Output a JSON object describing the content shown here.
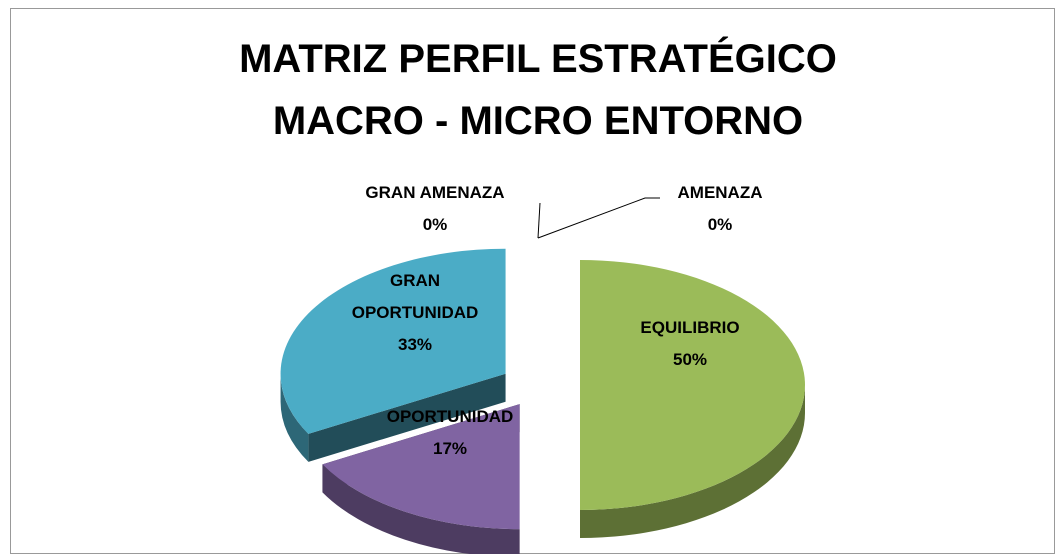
{
  "chart_data": {
    "type": "pie",
    "title": "MATRIZ PERFIL ESTRATÉGICO MACRO - MICRO ENTORNO",
    "categories": [
      "GRAN AMENAZA",
      "AMENAZA",
      "EQUILIBRIO",
      "OPORTUNIDAD",
      "GRAN OPORTUNIDAD"
    ],
    "values": [
      0,
      0,
      50,
      17,
      33
    ],
    "value_labels": [
      "0%",
      "0%",
      "50%",
      "17%",
      "33%"
    ],
    "colors": [
      "#C0504D",
      "#4F81BD",
      "#9BBB59",
      "#8064A2",
      "#4BACC6"
    ]
  }
}
